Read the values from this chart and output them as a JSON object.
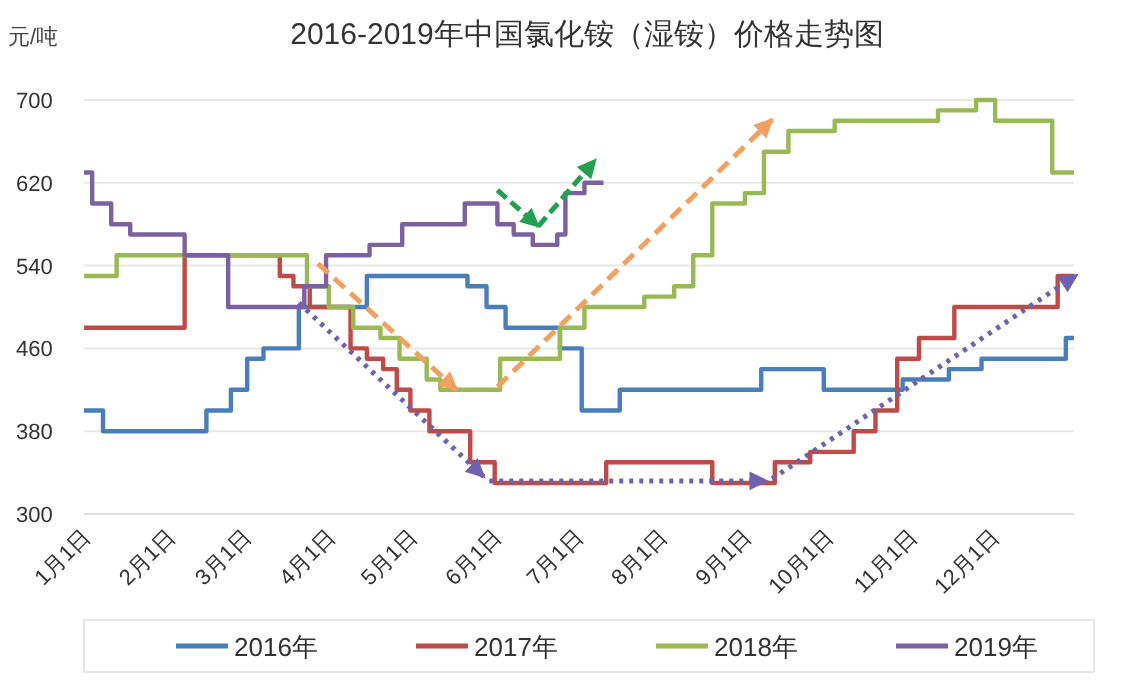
{
  "chart_data": {
    "type": "step",
    "title": "2016-2019年中国氯化铵（湿铵）价格走势图",
    "ylabel": "元/吨",
    "xlim": [
      "--01-01",
      "--12-31"
    ],
    "ylim": [
      300,
      700
    ],
    "yticks": [
      300,
      380,
      460,
      540,
      620,
      700
    ],
    "xticks": [
      {
        "value": "--01-01",
        "label": "1月1日"
      },
      {
        "value": "--02-01",
        "label": "2月1日"
      },
      {
        "value": "--03-01",
        "label": "3月1日"
      },
      {
        "value": "--04-01",
        "label": "4月1日"
      },
      {
        "value": "--05-01",
        "label": "5月1日"
      },
      {
        "value": "--06-01",
        "label": "6月1日"
      },
      {
        "value": "--07-01",
        "label": "7月1日"
      },
      {
        "value": "--08-01",
        "label": "8月1日"
      },
      {
        "value": "--09-01",
        "label": "9月1日"
      },
      {
        "value": "--10-01",
        "label": "10月1日"
      },
      {
        "value": "--11-01",
        "label": "11月1日"
      },
      {
        "value": "--12-01",
        "label": "12月1日"
      }
    ],
    "grid": "y",
    "legend": "bottom",
    "series": [
      {
        "name": "2016年",
        "color": "#4a7ebb",
        "x": [
          "--01-01",
          "--01-08",
          "--02-15",
          "--02-24",
          "--03-02",
          "--03-08",
          "--03-21",
          "--04-15",
          "--05-22",
          "--05-29",
          "--06-05",
          "--06-25",
          "--07-03",
          "--07-17",
          "--09-07",
          "--09-30",
          "--10-29",
          "--11-15",
          "--11-27",
          "--12-28",
          "--12-31"
        ],
        "values": [
          400,
          380,
          400,
          420,
          450,
          460,
          500,
          530,
          520,
          500,
          480,
          460,
          400,
          420,
          440,
          420,
          430,
          440,
          450,
          470,
          470
        ]
      },
      {
        "name": "2017年",
        "color": "#be4b48",
        "x": [
          "--01-01",
          "--02-07",
          "--03-14",
          "--03-19",
          "--03-25",
          "--04-09",
          "--04-15",
          "--04-21",
          "--04-26",
          "--05-01",
          "--05-08",
          "--05-23",
          "--06-01",
          "--07-12",
          "--08-20",
          "--09-12",
          "--09-25",
          "--10-11",
          "--10-19",
          "--10-27",
          "--11-04",
          "--11-17",
          "--12-25",
          "--12-31"
        ],
        "values": [
          480,
          550,
          530,
          520,
          500,
          460,
          450,
          440,
          420,
          400,
          380,
          350,
          330,
          350,
          330,
          350,
          360,
          380,
          400,
          450,
          470,
          500,
          530,
          530
        ]
      },
      {
        "name": "2018年",
        "color": "#98b954",
        "x": [
          "--01-01",
          "--01-13",
          "--03-24",
          "--04-01",
          "--04-10",
          "--04-20",
          "--04-27",
          "--05-07",
          "--05-12",
          "--06-03",
          "--06-25",
          "--07-04",
          "--07-26",
          "--08-06",
          "--08-13",
          "--08-20",
          "--09-01",
          "--09-08",
          "--09-17",
          "--10-04",
          "--11-11",
          "--11-25",
          "--12-02",
          "--12-23",
          "--12-31"
        ],
        "values": [
          530,
          550,
          520,
          500,
          480,
          470,
          450,
          430,
          420,
          450,
          480,
          500,
          510,
          520,
          550,
          600,
          610,
          650,
          670,
          680,
          690,
          700,
          680,
          630,
          630
        ]
      },
      {
        "name": "2019年",
        "color": "#7d60a0",
        "x": [
          "--01-01",
          "--01-04",
          "--01-11",
          "--01-18",
          "--02-07",
          "--02-23",
          "--03-23",
          "--03-31",
          "--04-16",
          "--04-28",
          "--05-21",
          "--06-02",
          "--06-08",
          "--06-15",
          "--06-24",
          "--06-27",
          "--07-04",
          "--07-11"
        ],
        "values": [
          630,
          600,
          580,
          570,
          550,
          500,
          520,
          550,
          560,
          580,
          600,
          580,
          570,
          560,
          570,
          610,
          620,
          620
        ]
      }
    ]
  }
}
